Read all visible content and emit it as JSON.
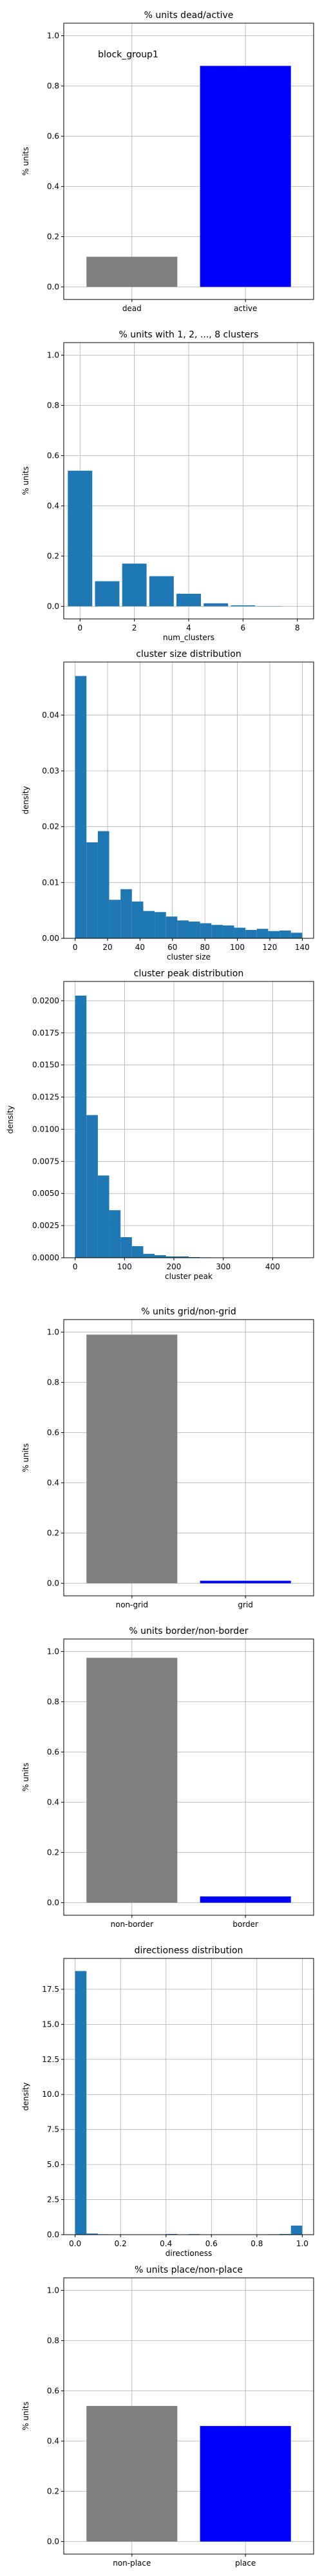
{
  "chart_data": [
    {
      "type": "bar",
      "title": "% units dead/active",
      "annotation": "block_group1",
      "xlabel": "",
      "ylabel": "% units",
      "categories": [
        "dead",
        "active"
      ],
      "values": [
        0.12,
        0.88
      ],
      "colors": [
        "#808080",
        "#0000ff"
      ],
      "xlim": [
        -0.6,
        1.6
      ],
      "ylim": [
        -0.05,
        1.05
      ],
      "yticks": [
        0.0,
        0.2,
        0.4,
        0.6,
        0.8,
        1.0
      ],
      "ytick_labels": [
        "0.0",
        "0.2",
        "0.4",
        "0.6",
        "0.8",
        "1.0"
      ],
      "bar_width": 0.8,
      "grid": true
    },
    {
      "type": "bar",
      "title": "% units with 1, 2, ..., 8 clusters",
      "xlabel": "num_clusters",
      "ylabel": "% units",
      "x": [
        0,
        1,
        2,
        3,
        4,
        5,
        6,
        7,
        8
      ],
      "values": [
        0.54,
        0.1,
        0.17,
        0.12,
        0.05,
        0.012,
        0.004,
        0.001,
        0.0
      ],
      "colors": [
        "#1f77b4"
      ],
      "xlim": [
        -0.6,
        8.6
      ],
      "ylim": [
        -0.05,
        1.05
      ],
      "xticks": [
        0,
        2,
        4,
        6,
        8
      ],
      "xtick_labels": [
        "0",
        "2",
        "4",
        "6",
        "8"
      ],
      "yticks": [
        0.0,
        0.2,
        0.4,
        0.6,
        0.8,
        1.0
      ],
      "ytick_labels": [
        "0.0",
        "0.2",
        "0.4",
        "0.6",
        "0.8",
        "1.0"
      ],
      "bar_width": 0.9,
      "grid": true
    },
    {
      "type": "bar",
      "title": "cluster size distribution",
      "xlabel": "cluster size",
      "ylabel": "density",
      "bin_edges": [
        0,
        7,
        14,
        21,
        28,
        35,
        42,
        49,
        56,
        63,
        70,
        77,
        84,
        91,
        98,
        105,
        112,
        119,
        126,
        133,
        140
      ],
      "values": [
        0.047,
        0.0172,
        0.0192,
        0.0069,
        0.0088,
        0.0066,
        0.0049,
        0.0047,
        0.0039,
        0.0032,
        0.003,
        0.0027,
        0.0024,
        0.0023,
        0.0019,
        0.0015,
        0.0017,
        0.0013,
        0.0014,
        0.001
      ],
      "colors": [
        "#1f77b4"
      ],
      "xlim": [
        -7,
        147
      ],
      "ylim": [
        0,
        0.0495
      ],
      "xticks": [
        0,
        20,
        40,
        60,
        80,
        100,
        120,
        140
      ],
      "xtick_labels": [
        "0",
        "20",
        "40",
        "60",
        "80",
        "100",
        "120",
        "140"
      ],
      "yticks": [
        0.0,
        0.01,
        0.02,
        0.03,
        0.04
      ],
      "ytick_labels": [
        "0.00",
        "0.01",
        "0.02",
        "0.03",
        "0.04"
      ],
      "grid": true
    },
    {
      "type": "bar",
      "title": "cluster peak distribution",
      "xlabel": "cluster peak",
      "ylabel": "density",
      "bin_edges": [
        0,
        23,
        46,
        69,
        92,
        115,
        138,
        161,
        184,
        207,
        230,
        253,
        276,
        299,
        322,
        345,
        368,
        391,
        414,
        437,
        460
      ],
      "values": [
        0.0204,
        0.0111,
        0.0064,
        0.0037,
        0.0016,
        0.0009,
        0.0003,
        0.0002,
        0.0001,
        0.0001,
        5e-05,
        3e-05,
        2e-05,
        1e-05,
        1e-05,
        1e-05,
        0.0,
        0.0,
        0.0,
        1e-05
      ],
      "colors": [
        "#1f77b4"
      ],
      "xlim": [
        -23,
        483
      ],
      "ylim": [
        0,
        0.0215
      ],
      "xticks": [
        0,
        100,
        200,
        300,
        400
      ],
      "xtick_labels": [
        "0",
        "100",
        "200",
        "300",
        "400"
      ],
      "yticks": [
        0.0,
        0.0025,
        0.005,
        0.0075,
        0.01,
        0.0125,
        0.015,
        0.0175,
        0.02
      ],
      "ytick_labels": [
        "0.0000",
        "0.0025",
        "0.0050",
        "0.0075",
        "0.0100",
        "0.0125",
        "0.0150",
        "0.0175",
        "0.0200"
      ],
      "grid": true
    },
    {
      "type": "bar",
      "title": "% units grid/non-grid",
      "xlabel": "",
      "ylabel": "% units",
      "categories": [
        "non-grid",
        "grid"
      ],
      "values": [
        0.99,
        0.01
      ],
      "colors": [
        "#808080",
        "#0000ff"
      ],
      "xlim": [
        -0.6,
        1.6
      ],
      "ylim": [
        -0.05,
        1.05
      ],
      "yticks": [
        0.0,
        0.2,
        0.4,
        0.6,
        0.8,
        1.0
      ],
      "ytick_labels": [
        "0.0",
        "0.2",
        "0.4",
        "0.6",
        "0.8",
        "1.0"
      ],
      "bar_width": 0.8,
      "grid": true
    },
    {
      "type": "bar",
      "title": "% units border/non-border",
      "xlabel": "",
      "ylabel": "% units",
      "categories": [
        "non-border",
        "border"
      ],
      "values": [
        0.975,
        0.025
      ],
      "colors": [
        "#808080",
        "#0000ff"
      ],
      "xlim": [
        -0.6,
        1.6
      ],
      "ylim": [
        -0.05,
        1.05
      ],
      "yticks": [
        0.0,
        0.2,
        0.4,
        0.6,
        0.8,
        1.0
      ],
      "ytick_labels": [
        "0.0",
        "0.2",
        "0.4",
        "0.6",
        "0.8",
        "1.0"
      ],
      "bar_width": 0.8,
      "grid": true
    },
    {
      "type": "bar",
      "title": "directioness distribution",
      "xlabel": "directioness",
      "ylabel": "density",
      "bin_edges": [
        0.0,
        0.05,
        0.1,
        0.15,
        0.2,
        0.25,
        0.3,
        0.35,
        0.4,
        0.45,
        0.5,
        0.55,
        0.6,
        0.65,
        0.7,
        0.75,
        0.8,
        0.85,
        0.9,
        0.95,
        1.0
      ],
      "values": [
        18.8,
        0.08,
        0.03,
        0.02,
        0.02,
        0.02,
        0.02,
        0.02,
        0.05,
        0.02,
        0.04,
        0.02,
        0.02,
        0.02,
        0.02,
        0.02,
        0.02,
        0.03,
        0.05,
        0.65
      ],
      "colors": [
        "#1f77b4"
      ],
      "xlim": [
        -0.05,
        1.05
      ],
      "ylim": [
        0,
        19.7
      ],
      "xticks": [
        0.0,
        0.2,
        0.4,
        0.6,
        0.8,
        1.0
      ],
      "xtick_labels": [
        "0.0",
        "0.2",
        "0.4",
        "0.6",
        "0.8",
        "1.0"
      ],
      "yticks": [
        0.0,
        2.5,
        5.0,
        7.5,
        10.0,
        12.5,
        15.0,
        17.5
      ],
      "ytick_labels": [
        "0.0",
        "2.5",
        "5.0",
        "7.5",
        "10.0",
        "12.5",
        "15.0",
        "17.5"
      ],
      "grid": true
    },
    {
      "type": "bar",
      "title": "% units place/non-place",
      "xlabel": "",
      "ylabel": "% units",
      "categories": [
        "non-place",
        "place"
      ],
      "values": [
        0.54,
        0.46
      ],
      "colors": [
        "#808080",
        "#0000ff"
      ],
      "xlim": [
        -0.6,
        1.6
      ],
      "ylim": [
        -0.05,
        1.05
      ],
      "yticks": [
        0.0,
        0.2,
        0.4,
        0.6,
        0.8,
        1.0
      ],
      "ytick_labels": [
        "0.0",
        "0.2",
        "0.4",
        "0.6",
        "0.8",
        "1.0"
      ],
      "bar_width": 0.8,
      "grid": true
    }
  ]
}
